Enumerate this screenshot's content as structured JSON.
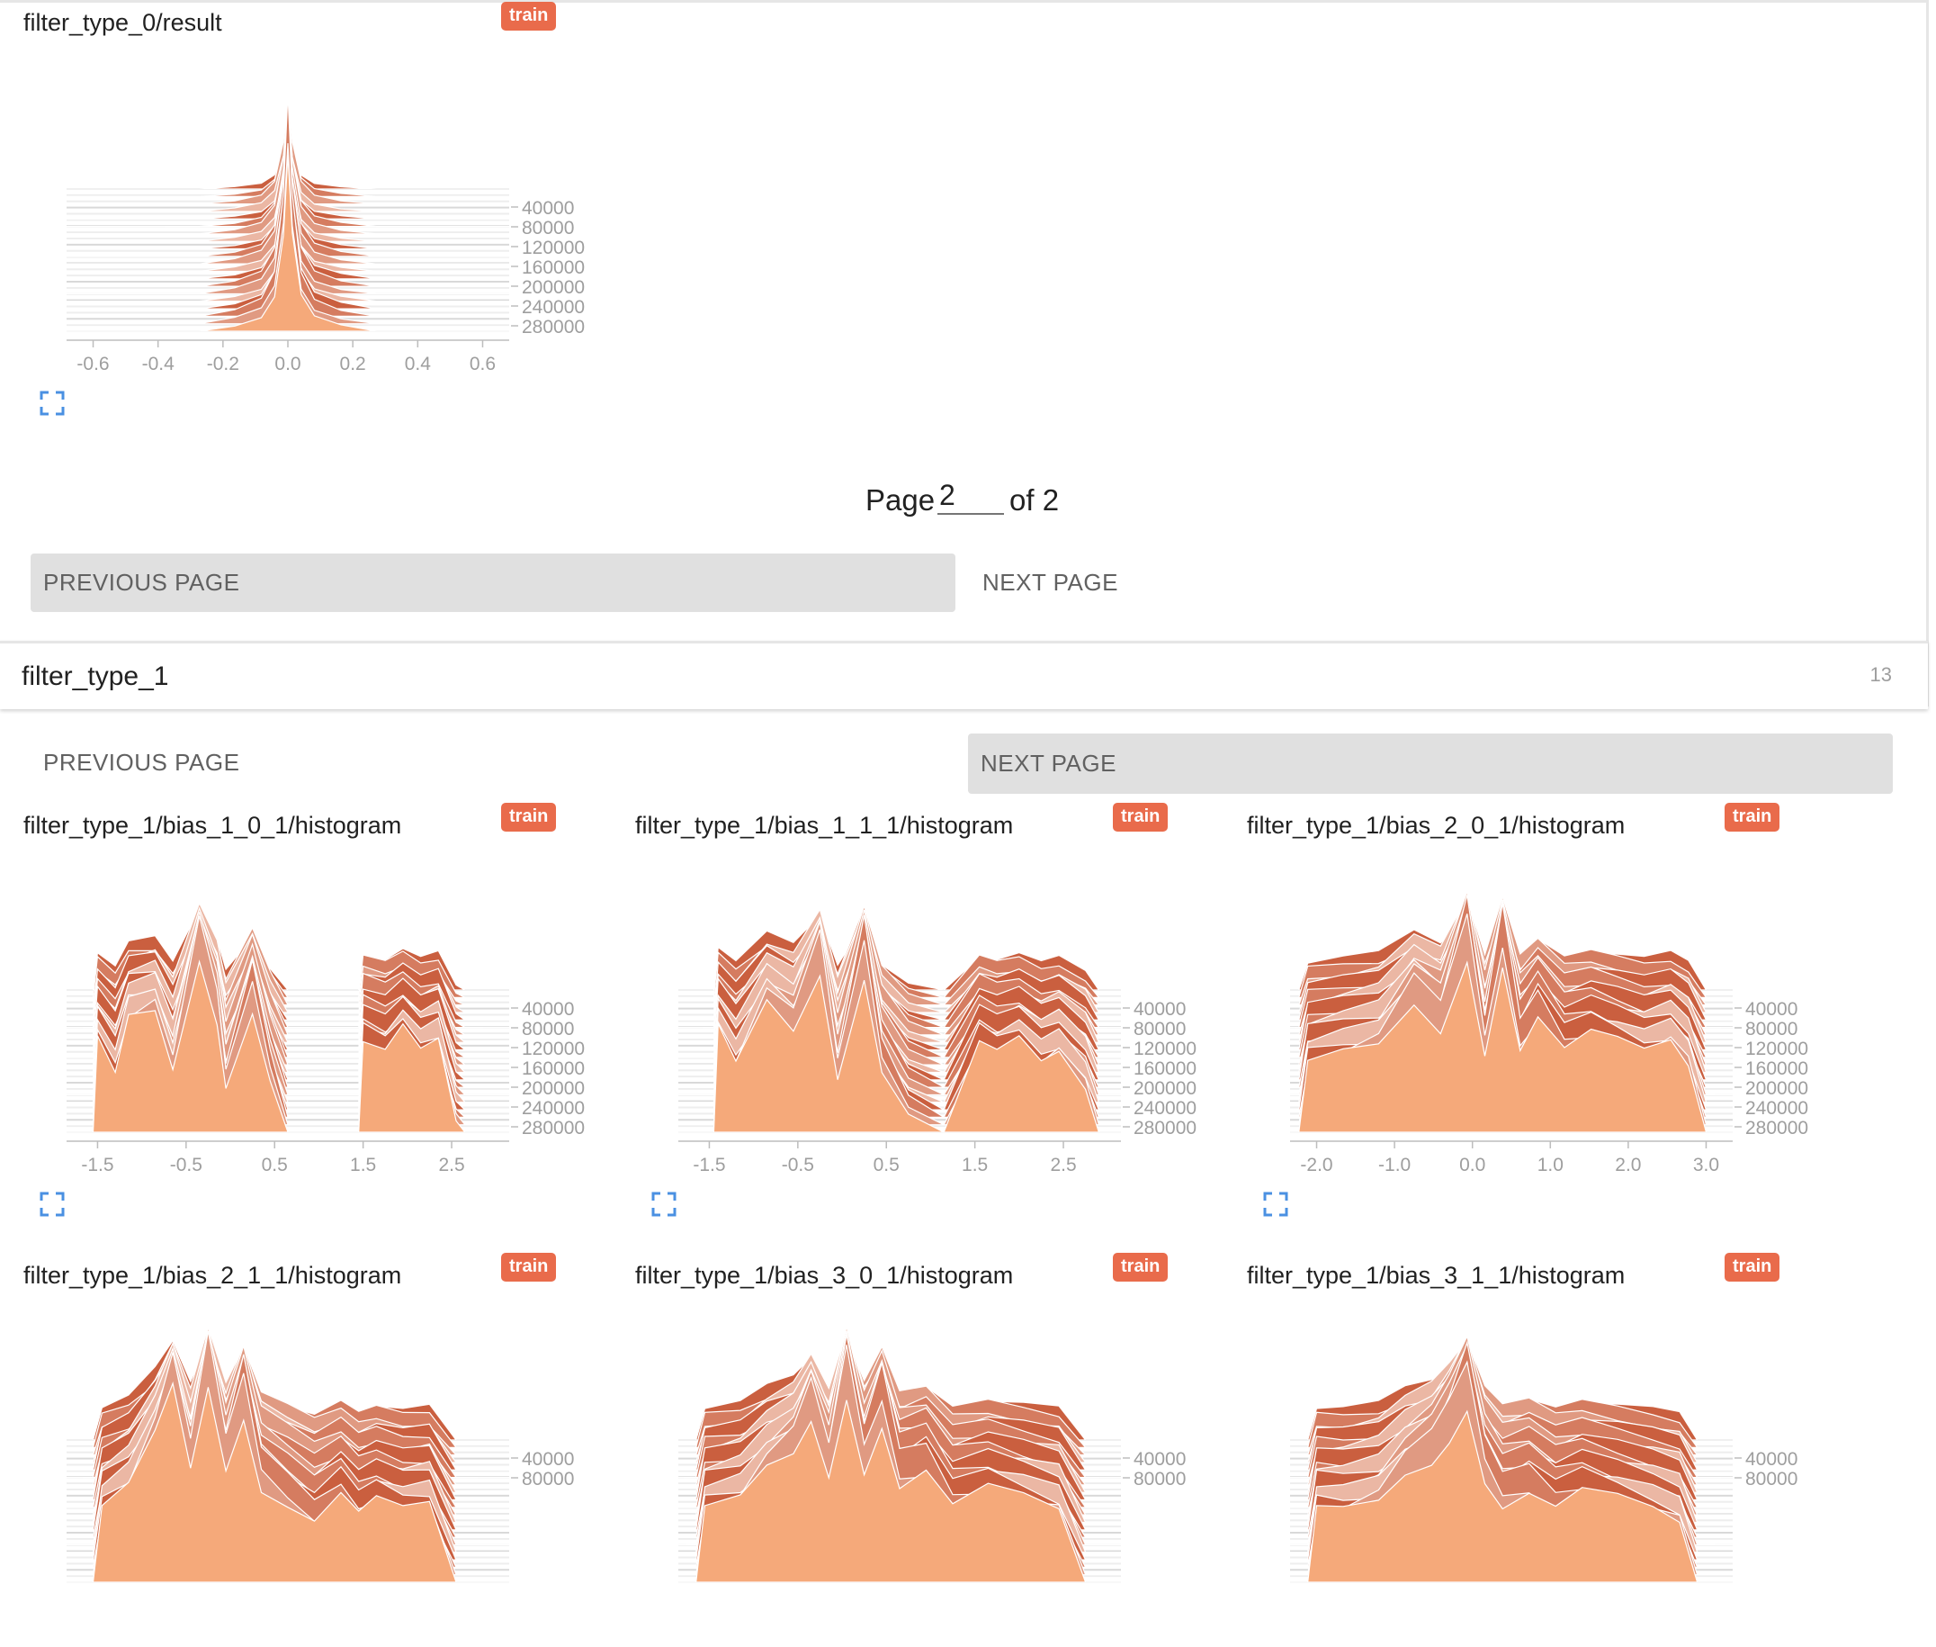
{
  "section_top": {
    "card": {
      "title": "filter_type_0/result",
      "badge": "train",
      "x_ticks": [
        "-0.6",
        "-0.4",
        "-0.2",
        "0.0",
        "0.2",
        "0.4",
        "0.6"
      ],
      "y_ticks": [
        "40000",
        "80000",
        "120000",
        "160000",
        "200000",
        "240000",
        "280000"
      ]
    },
    "pager": {
      "page_label": "Page",
      "page_value": "2",
      "of_label": "of 2",
      "prev_label": "PREVIOUS PAGE",
      "next_label": "NEXT PAGE"
    }
  },
  "group": {
    "name": "filter_type_1",
    "count": "13",
    "prev_label": "PREVIOUS PAGE",
    "next_label": "NEXT PAGE",
    "cards": [
      {
        "title": "filter_type_1/bias_1_0_1/histogram",
        "badge": "train",
        "x_ticks": [
          "-1.5",
          "-0.5",
          "0.5",
          "1.5",
          "2.5"
        ],
        "y_ticks": [
          "40000",
          "80000",
          "120000",
          "160000",
          "200000",
          "240000",
          "280000"
        ]
      },
      {
        "title": "filter_type_1/bias_1_1_1/histogram",
        "badge": "train",
        "x_ticks": [
          "-1.5",
          "-0.5",
          "0.5",
          "1.5",
          "2.5"
        ],
        "y_ticks": [
          "40000",
          "80000",
          "120000",
          "160000",
          "200000",
          "240000",
          "280000"
        ]
      },
      {
        "title": "filter_type_1/bias_2_0_1/histogram",
        "badge": "train",
        "x_ticks": [
          "-2.0",
          "-1.0",
          "0.0",
          "1.0",
          "2.0",
          "3.0"
        ],
        "y_ticks": [
          "40000",
          "80000",
          "120000",
          "160000",
          "200000",
          "240000",
          "280000"
        ]
      },
      {
        "title": "filter_type_1/bias_2_1_1/histogram",
        "badge": "train",
        "x_ticks": [],
        "y_ticks": [
          "40000",
          "80000"
        ]
      },
      {
        "title": "filter_type_1/bias_3_0_1/histogram",
        "badge": "train",
        "x_ticks": [],
        "y_ticks": [
          "40000",
          "80000"
        ]
      },
      {
        "title": "filter_type_1/bias_3_1_1/histogram",
        "badge": "train",
        "x_ticks": [],
        "y_ticks": [
          "40000",
          "80000"
        ]
      }
    ]
  },
  "colors": {
    "badge": "#e96b4b",
    "hist_dark": "#c4502e",
    "hist_light": "#f5a97a",
    "expand_icon": "#4a90e2"
  }
}
